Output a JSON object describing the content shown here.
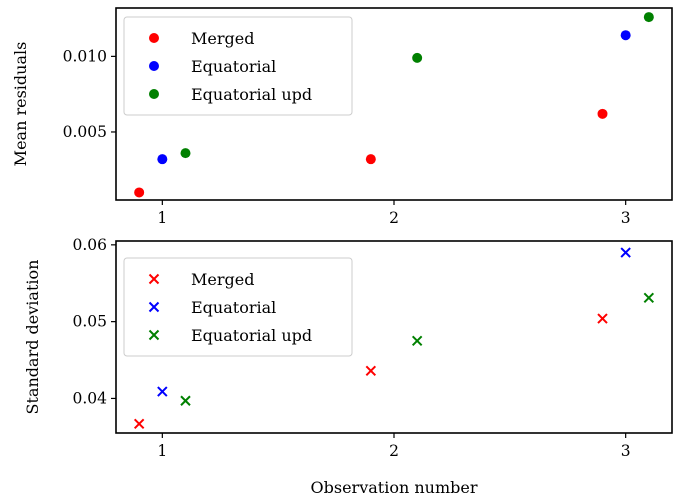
{
  "chart_data": [
    {
      "type": "scatter",
      "marker": "circle",
      "ylabel": "Mean residuals",
      "xlabel": "",
      "xlim": [
        0.8,
        3.2
      ],
      "ylim": [
        0.0005,
        0.0132
      ],
      "xticks": [
        1,
        2,
        3
      ],
      "xtick_labels": [
        "1",
        "2",
        "3"
      ],
      "yticks": [
        0.005,
        0.01
      ],
      "ytick_labels": [
        "0.005",
        "0.010"
      ],
      "grid": false,
      "legend_position": "upper-left",
      "series": [
        {
          "name": "Merged",
          "color": "#ff0000",
          "x": [
            0.9,
            1.9,
            2.9
          ],
          "y": [
            0.001,
            0.0032,
            0.0062
          ]
        },
        {
          "name": "Equatorial",
          "color": "#0000ff",
          "x": [
            1.0,
            3.0
          ],
          "y": [
            0.0032,
            0.0114
          ]
        },
        {
          "name": "Equatorial upd",
          "color": "#008000",
          "x": [
            1.1,
            2.1,
            3.1
          ],
          "y": [
            0.0036,
            0.0099,
            0.0126
          ]
        }
      ]
    },
    {
      "type": "scatter",
      "marker": "x",
      "ylabel": "Standard deviation",
      "xlabel": "Observation number",
      "xlim": [
        0.8,
        3.2
      ],
      "ylim": [
        0.0355,
        0.0605
      ],
      "xticks": [
        1,
        2,
        3
      ],
      "xtick_labels": [
        "1",
        "2",
        "3"
      ],
      "yticks": [
        0.04,
        0.05,
        0.06
      ],
      "ytick_labels": [
        "0.04",
        "0.05",
        "0.06"
      ],
      "grid": false,
      "legend_position": "upper-left",
      "series": [
        {
          "name": "Merged",
          "color": "#ff0000",
          "x": [
            0.9,
            1.9,
            2.9
          ],
          "y": [
            0.0367,
            0.0436,
            0.0504
          ]
        },
        {
          "name": "Equatorial",
          "color": "#0000ff",
          "x": [
            1.0,
            3.0
          ],
          "y": [
            0.0409,
            0.059
          ]
        },
        {
          "name": "Equatorial upd",
          "color": "#008000",
          "x": [
            1.1,
            2.1,
            3.1
          ],
          "y": [
            0.0397,
            0.0475,
            0.0531
          ]
        }
      ]
    }
  ]
}
